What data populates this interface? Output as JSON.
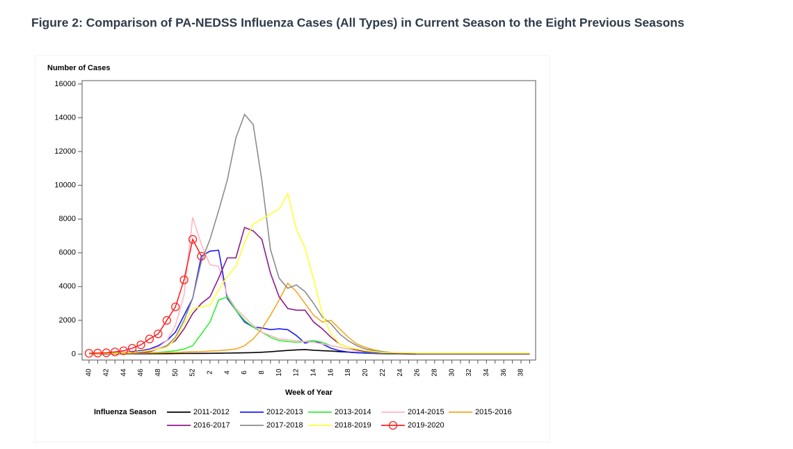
{
  "title": "Figure 2: Comparison of PA-NEDSS Influenza Cases (All Types) in Current Season to the Eight Previous Seasons",
  "chart_data": {
    "type": "line",
    "y_label": "Number of Cases",
    "x_label": "Week of Year",
    "legend_title": "Influenza Season",
    "categories": [
      40,
      null,
      42,
      null,
      44,
      null,
      46,
      null,
      48,
      null,
      50,
      null,
      52,
      null,
      2,
      null,
      4,
      null,
      6,
      null,
      8,
      null,
      10,
      null,
      12,
      null,
      14,
      null,
      16,
      null,
      18,
      null,
      20,
      null,
      22,
      null,
      24,
      null,
      26,
      null,
      28,
      null,
      30,
      null,
      32,
      null,
      34,
      null,
      36,
      null,
      38,
      null
    ],
    "ylim": [
      -350,
      16200
    ],
    "yticks": [
      0,
      2000,
      4000,
      6000,
      8000,
      10000,
      12000,
      14000,
      16000
    ],
    "series": [
      {
        "name": "2011-2012",
        "color": "#000000",
        "values": [
          10,
          10,
          10,
          15,
          15,
          20,
          20,
          25,
          30,
          30,
          35,
          40,
          45,
          45,
          50,
          55,
          60,
          70,
          80,
          90,
          110,
          140,
          180,
          220,
          250,
          270,
          230,
          200,
          180,
          150,
          120,
          90,
          60,
          40,
          30,
          20,
          15,
          10,
          10,
          10,
          10,
          10,
          10,
          10,
          10,
          10,
          10,
          10,
          10,
          10,
          10,
          10
        ]
      },
      {
        "name": "2012-2013",
        "color": "#1a1aff",
        "values": [
          20,
          30,
          40,
          60,
          100,
          150,
          200,
          300,
          500,
          800,
          1300,
          2300,
          3300,
          5800,
          6100,
          6150,
          3300,
          2600,
          1900,
          1600,
          1550,
          1450,
          1500,
          1450,
          1100,
          650,
          800,
          600,
          350,
          200,
          120,
          80,
          60,
          50,
          40,
          40,
          30,
          30,
          30,
          30,
          30,
          30,
          30,
          30,
          30,
          30,
          30,
          30,
          30,
          30,
          30,
          30
        ]
      },
      {
        "name": "2013-2014",
        "color": "#33ee33",
        "values": [
          20,
          20,
          30,
          30,
          40,
          50,
          60,
          80,
          100,
          150,
          200,
          300,
          500,
          1200,
          1900,
          3200,
          3400,
          2600,
          2000,
          1600,
          1300,
          1000,
          800,
          750,
          700,
          750,
          800,
          700,
          500,
          400,
          300,
          200,
          120,
          80,
          60,
          50,
          40,
          40,
          30,
          30,
          30,
          30,
          30,
          30,
          30,
          30,
          30,
          30,
          30,
          30,
          30,
          30
        ]
      },
      {
        "name": "2014-2015",
        "color": "#ffb6c1",
        "values": [
          20,
          30,
          40,
          50,
          70,
          100,
          150,
          250,
          400,
          800,
          1700,
          3500,
          8100,
          6500,
          5300,
          5200,
          3500,
          2700,
          2200,
          1700,
          1300,
          1100,
          900,
          850,
          800,
          750,
          700,
          600,
          500,
          400,
          300,
          200,
          150,
          100,
          80,
          60,
          50,
          40,
          30,
          30,
          30,
          30,
          30,
          30,
          30,
          30,
          30,
          30,
          30,
          30,
          30,
          30
        ]
      },
      {
        "name": "2015-2016",
        "color": "#f5a623",
        "values": [
          30,
          30,
          40,
          40,
          50,
          50,
          60,
          70,
          80,
          90,
          100,
          120,
          140,
          150,
          180,
          200,
          250,
          300,
          500,
          900,
          1500,
          2300,
          3200,
          4200,
          3700,
          3000,
          2300,
          1900,
          2000,
          1500,
          1000,
          600,
          400,
          250,
          150,
          100,
          80,
          60,
          50,
          50,
          50,
          50,
          50,
          50,
          50,
          50,
          50,
          50,
          50,
          50,
          50,
          50
        ]
      },
      {
        "name": "2016-2017",
        "color": "#8b1a8b",
        "values": [
          20,
          30,
          40,
          50,
          60,
          80,
          100,
          150,
          300,
          500,
          800,
          1500,
          2400,
          3000,
          3400,
          4500,
          5700,
          5700,
          7500,
          7300,
          6800,
          4800,
          3400,
          2700,
          2600,
          2600,
          1900,
          1500,
          1000,
          600,
          400,
          250,
          150,
          100,
          80,
          60,
          50,
          40,
          30,
          30,
          30,
          30,
          30,
          30,
          30,
          30,
          30,
          30,
          30,
          30,
          30,
          30
        ]
      },
      {
        "name": "2017-2018",
        "color": "#8c8c8c",
        "values": [
          50,
          60,
          70,
          80,
          100,
          120,
          150,
          200,
          300,
          500,
          1000,
          2000,
          3300,
          5500,
          6800,
          8500,
          10300,
          12800,
          14200,
          13600,
          10300,
          6200,
          4500,
          3900,
          4100,
          3700,
          3000,
          2200,
          1800,
          1200,
          800,
          500,
          300,
          200,
          150,
          100,
          80,
          60,
          50,
          50,
          50,
          50,
          50,
          50,
          50,
          50,
          50,
          50,
          50,
          50,
          50,
          50
        ]
      },
      {
        "name": "2018-2019",
        "color": "#ffff33",
        "values": [
          20,
          30,
          40,
          50,
          70,
          100,
          150,
          200,
          300,
          400,
          900,
          1800,
          2700,
          2800,
          2900,
          3800,
          4600,
          5200,
          6600,
          7700,
          8000,
          8300,
          8600,
          9500,
          7400,
          6300,
          4400,
          2400,
          1200,
          600,
          400,
          300,
          200,
          150,
          100,
          100,
          80,
          80,
          60,
          60,
          60,
          60,
          60,
          60,
          60,
          60,
          60,
          60,
          60,
          60,
          60,
          60
        ]
      },
      {
        "name": "2019-2020",
        "color": "#ff2020",
        "marker": "circle",
        "values": [
          50,
          60,
          80,
          130,
          200,
          350,
          550,
          900,
          1200,
          2000,
          2800,
          4400,
          6800,
          5800,
          null,
          null,
          null,
          null,
          null,
          null,
          null,
          null,
          null,
          null,
          null,
          null,
          null,
          null,
          null,
          null,
          null,
          null,
          null,
          null,
          null,
          null,
          null,
          null,
          null,
          null,
          null,
          null,
          null,
          null,
          null,
          null,
          null,
          null,
          null,
          null,
          null,
          null
        ]
      }
    ]
  }
}
